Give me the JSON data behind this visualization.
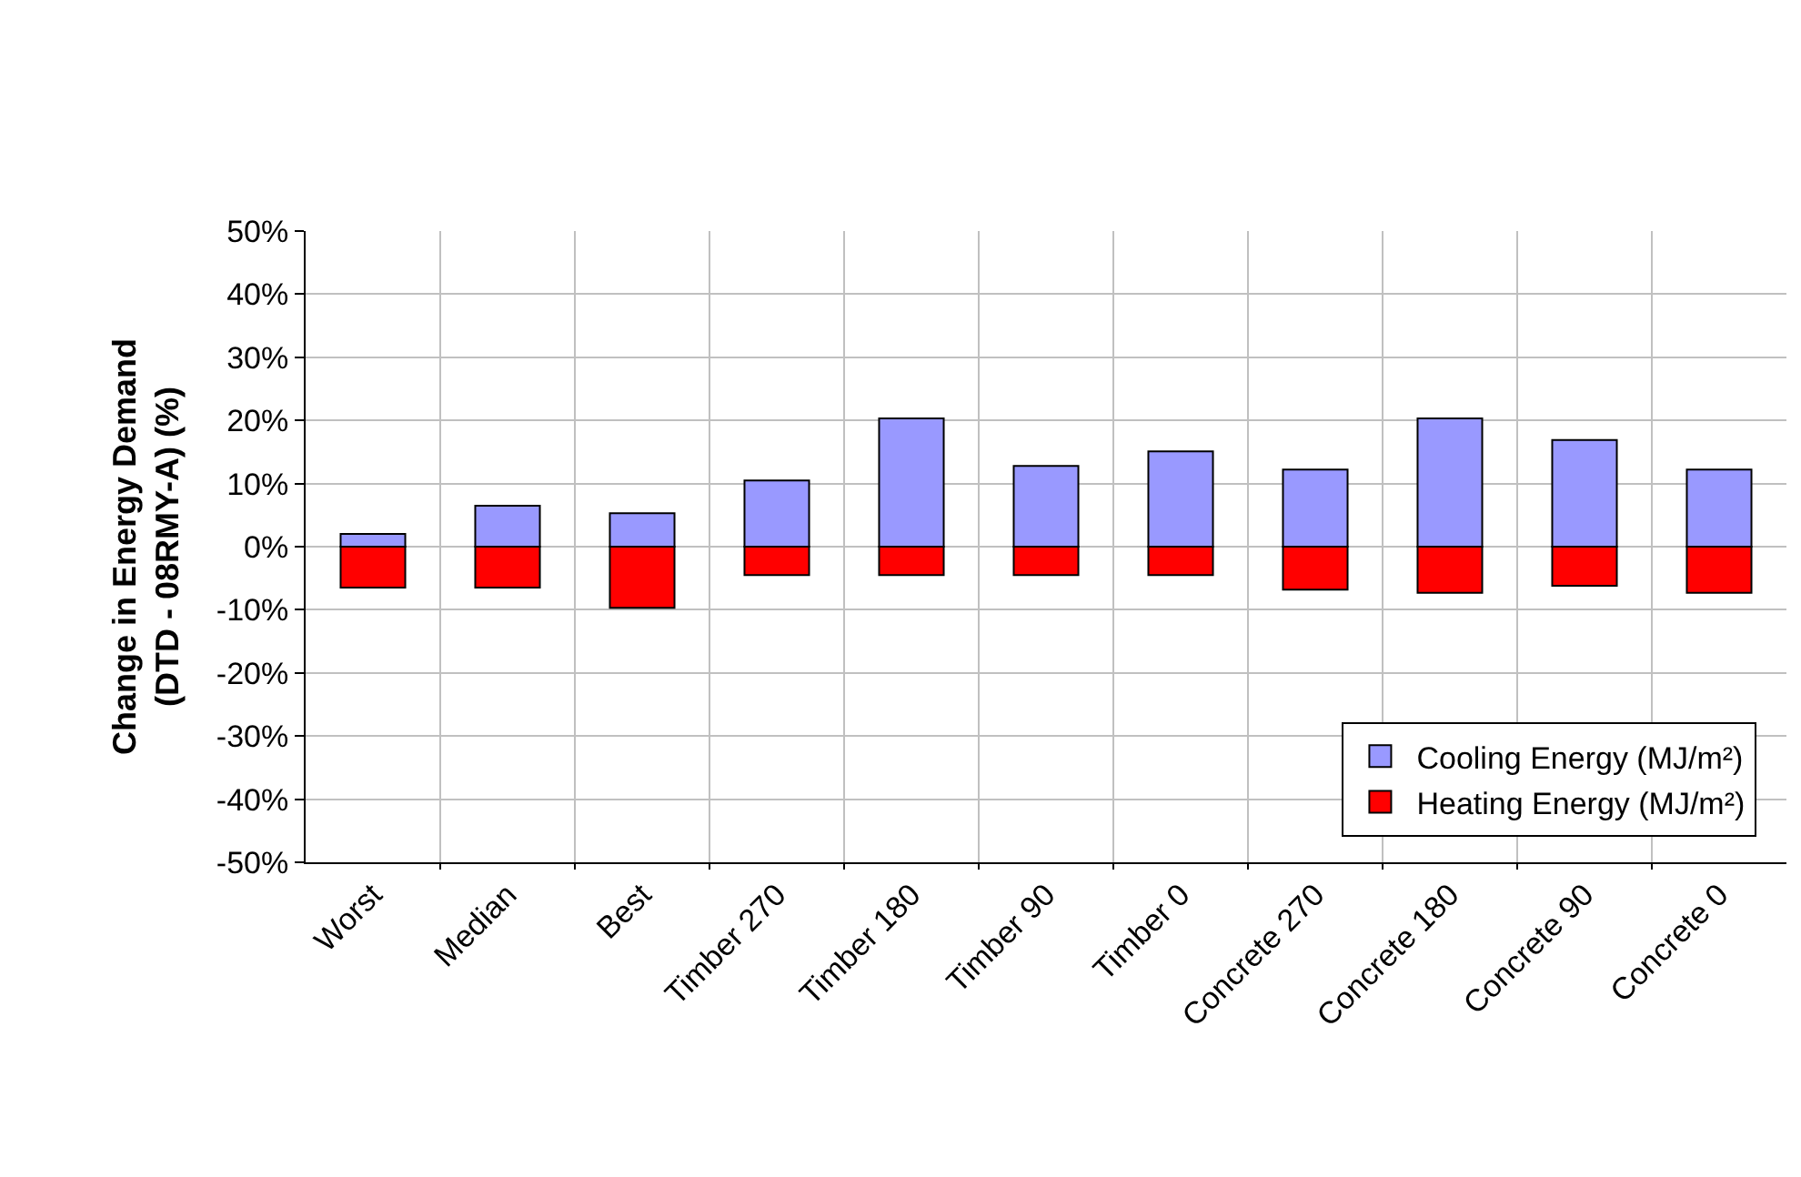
{
  "chart_data": {
    "type": "bar",
    "ylabel": "Change in Energy Demand\n(DTD - 08RMY-A) (%)",
    "categories": [
      "Worst",
      "Median",
      "Best",
      "Timber 270",
      "Timber 180",
      "Timber 90",
      "Timber 0",
      "Concrete 270",
      "Concrete 180",
      "Concrete 90",
      "Concrete 0"
    ],
    "series": [
      {
        "name": "Cooling Energy (MJ/m²)",
        "color": "#9999ff",
        "values": [
          2,
          6.5,
          5.3,
          10.5,
          20.3,
          12.8,
          15.1,
          12.2,
          20.3,
          16.9,
          12.2
        ]
      },
      {
        "name": "Heating Energy (MJ/m²)",
        "color": "#ff0000",
        "values": [
          -6.5,
          -6.5,
          -9.7,
          -4.5,
          -4.5,
          -4.5,
          -4.5,
          -6.8,
          -7.3,
          -6.2,
          -7.3
        ]
      }
    ],
    "stacked": true,
    "ylim": [
      -50,
      50
    ],
    "yticks": [
      {
        "value": -50,
        "label": "-50%"
      },
      {
        "value": -40,
        "label": "-40%"
      },
      {
        "value": -30,
        "label": "-30%"
      },
      {
        "value": -20,
        "label": "-20%"
      },
      {
        "value": -10,
        "label": "-10%"
      },
      {
        "value": 0,
        "label": "0%"
      },
      {
        "value": 10,
        "label": "10%"
      },
      {
        "value": 20,
        "label": "20%"
      },
      {
        "value": 30,
        "label": "30%"
      },
      {
        "value": 40,
        "label": "40%"
      },
      {
        "value": 50,
        "label": "50%"
      }
    ],
    "grid": true,
    "legend": "bottom right"
  }
}
